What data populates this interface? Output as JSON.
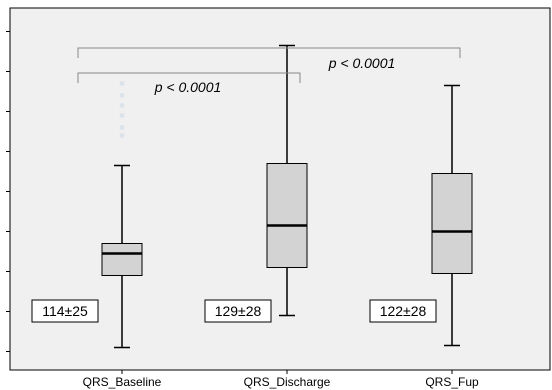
{
  "chart_data": {
    "type": "box",
    "categories": [
      "QRS_Baseline",
      "QRS_Discharge",
      "QRS_Fup"
    ],
    "boxes": [
      {
        "name": "QRS_Baseline",
        "whisker_low": 62,
        "q1": 98,
        "median": 109,
        "q3": 114,
        "whisker_high": 153,
        "outliers": [
          168,
          172,
          178,
          183,
          188,
          194
        ],
        "summary": "114±25"
      },
      {
        "name": "QRS_Discharge",
        "whisker_low": 78,
        "q1": 102,
        "median": 123,
        "q3": 154,
        "whisker_high": 213,
        "outliers": [],
        "summary": "129±28"
      },
      {
        "name": "QRS_Fup",
        "whisker_low": 63,
        "q1": 99,
        "median": 120,
        "q3": 149,
        "whisker_high": 193,
        "outliers": [],
        "summary": "122±28"
      }
    ],
    "ylim": [
      60,
      245
    ],
    "grid": false,
    "colors": {
      "box_fill": "#d3d3d3",
      "outlier": "#dde3ea",
      "plot_bg": "#f0f0f0",
      "stroke": "#000000"
    },
    "annotations": [
      {
        "text": "p < 0.0001",
        "from": "QRS_Baseline",
        "to": "QRS_Discharge"
      },
      {
        "text": "p < 0.0001",
        "from": "QRS_Baseline",
        "to": "QRS_Fup"
      }
    ]
  }
}
